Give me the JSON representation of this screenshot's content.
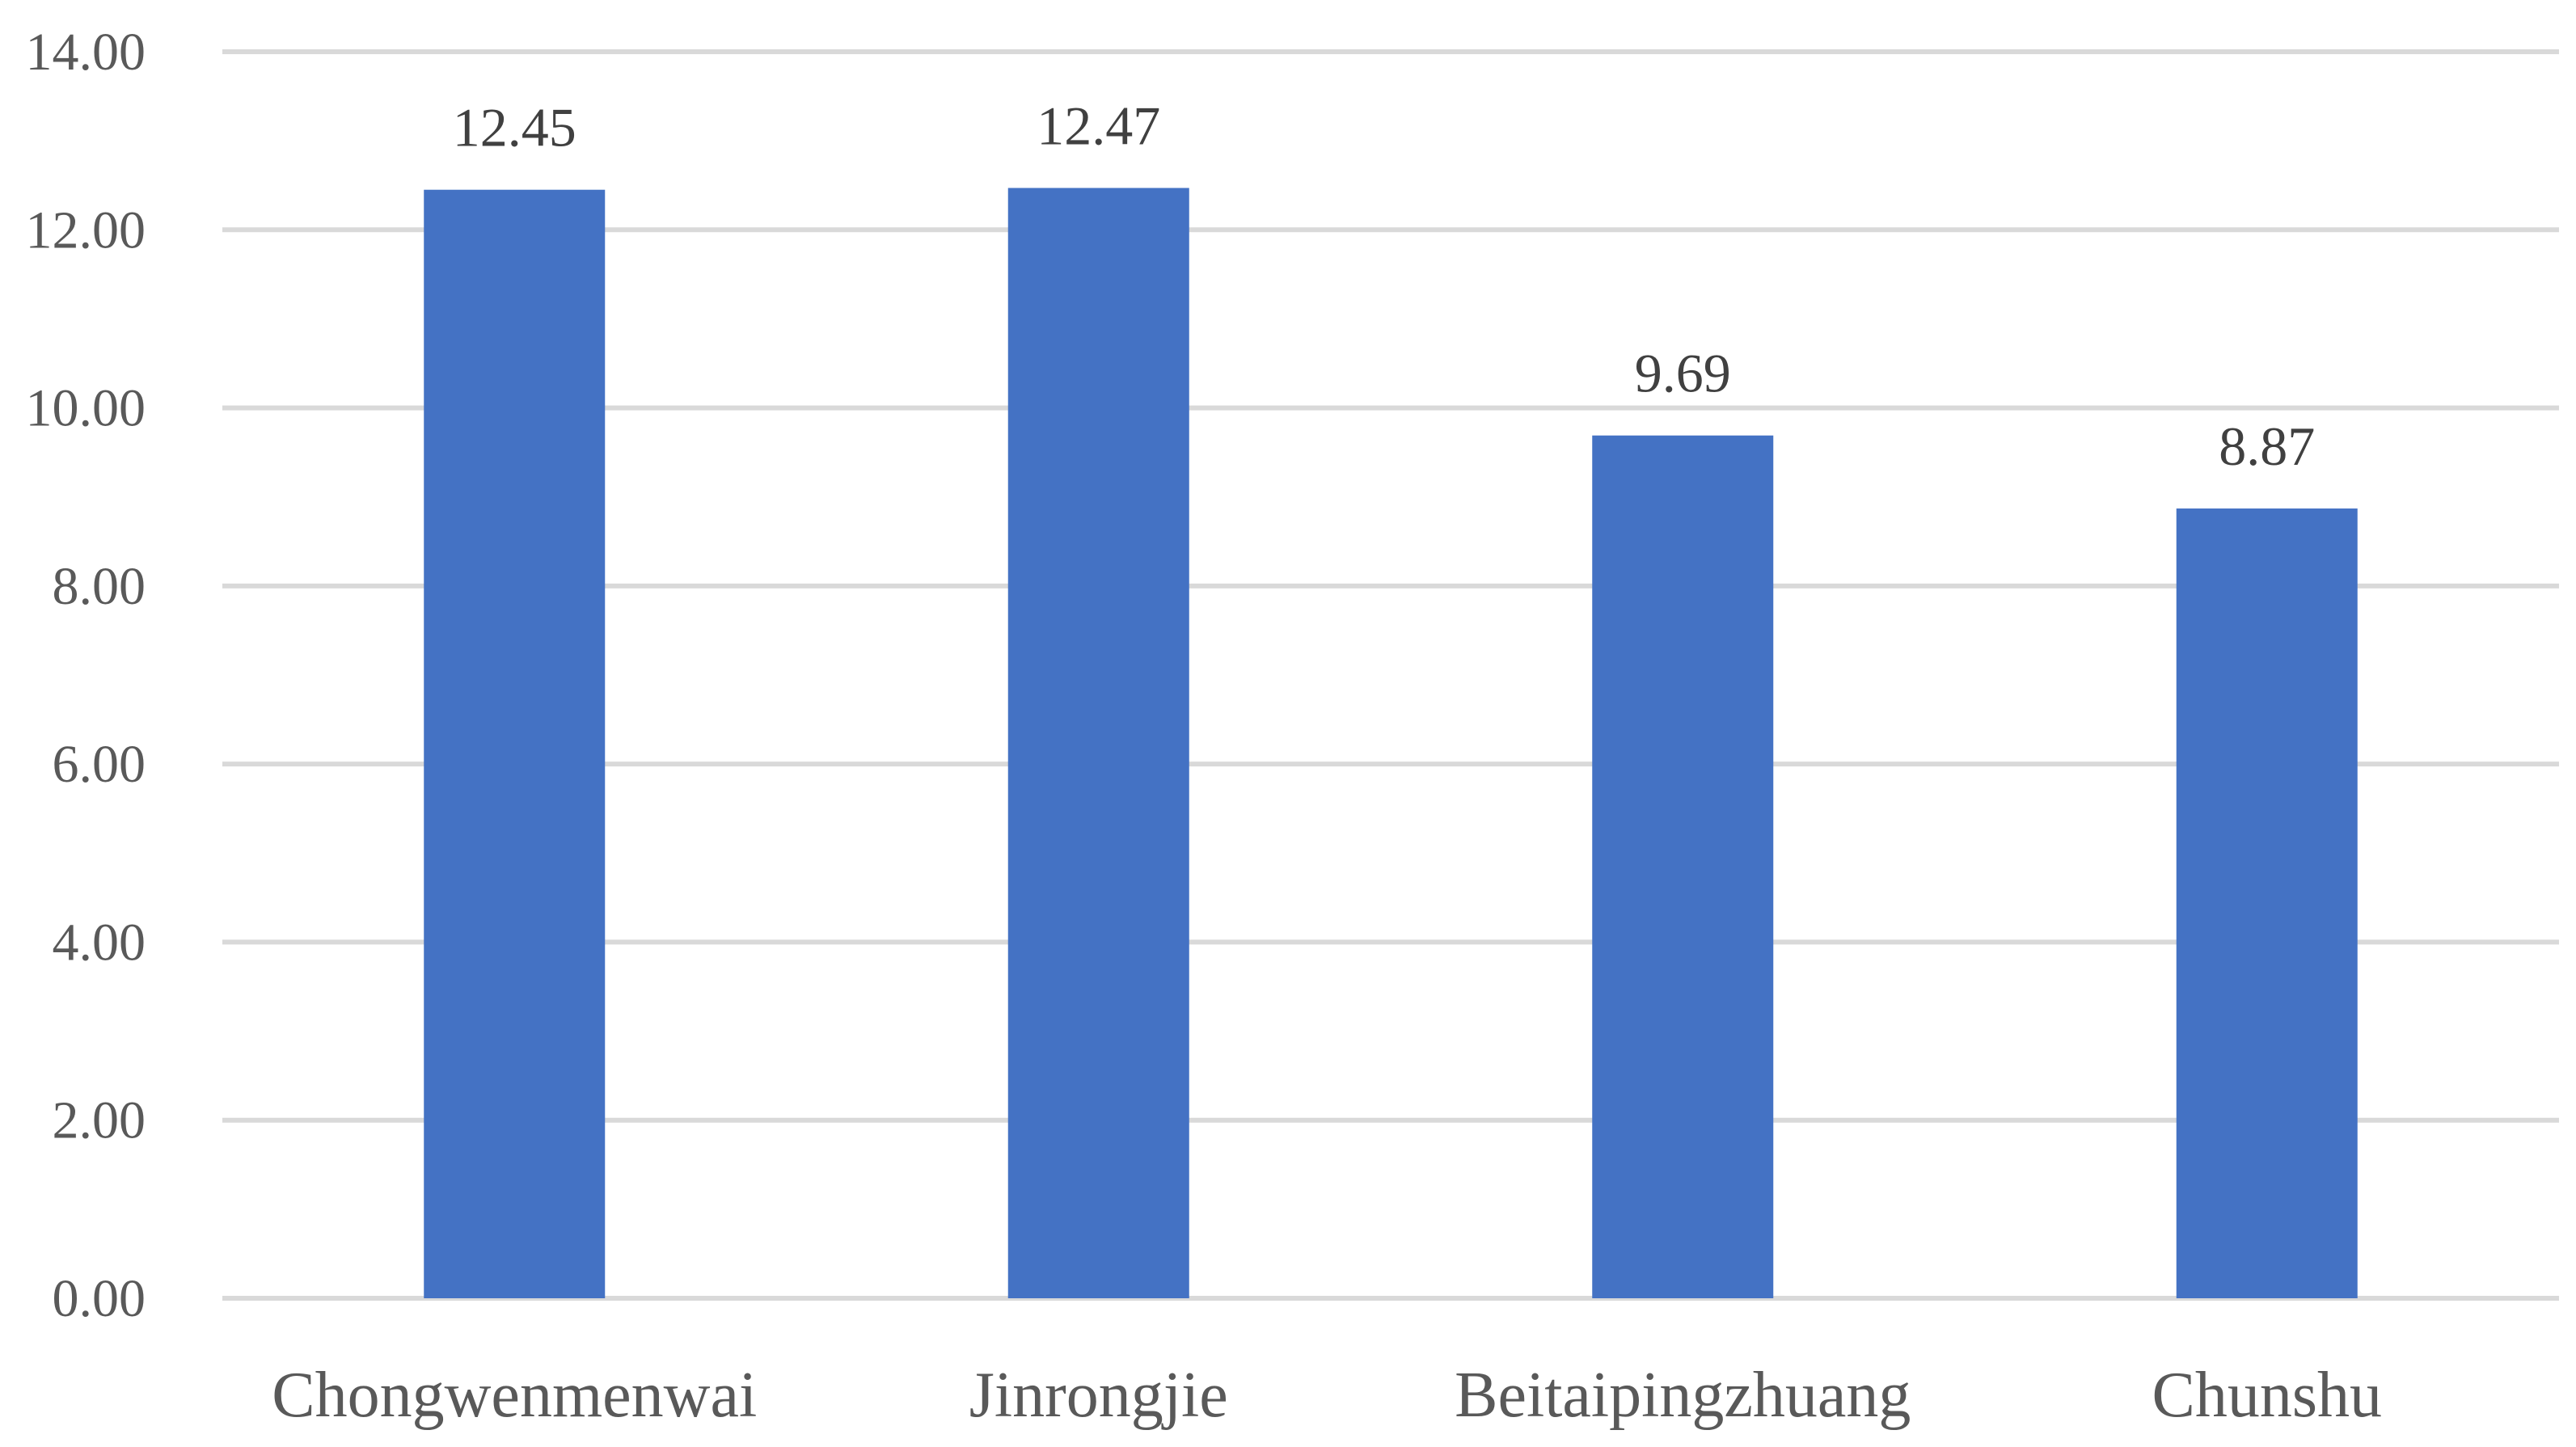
{
  "chart_data": {
    "type": "bar",
    "title": "",
    "xlabel": "",
    "ylabel": "",
    "categories": [
      "Chongwenmenwai",
      "Jinrongjie",
      "Beitaipingzhuang",
      "Chunshu"
    ],
    "series": [
      {
        "values": [
          12.45,
          12.47,
          9.69,
          8.87
        ],
        "labels": [
          "12.45",
          "12.47",
          "9.69",
          "8.87"
        ],
        "color": "#4472c4"
      }
    ],
    "ylim": [
      0,
      14
    ],
    "yticks": [
      0,
      2,
      4,
      6,
      8,
      10,
      12,
      14
    ],
    "ytick_labels": [
      "0.00",
      "2.00",
      "4.00",
      "6.00",
      "8.00",
      "10.00",
      "12.00",
      "14.00"
    ],
    "grid": true,
    "gridline_color": "#d9d9d9",
    "legend": "none"
  }
}
